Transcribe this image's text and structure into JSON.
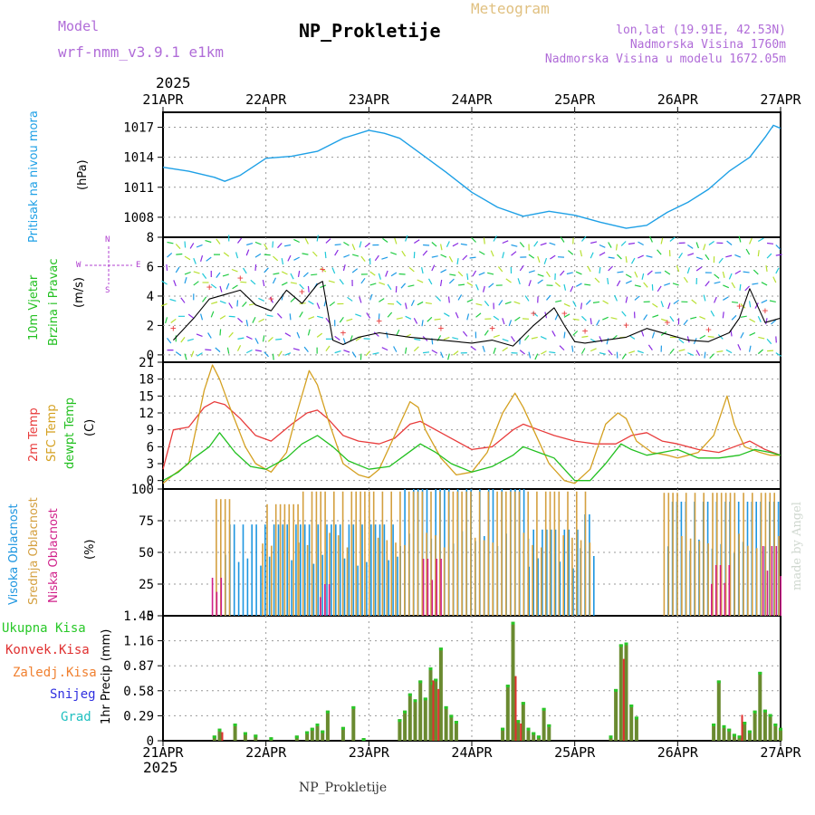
{
  "header": {
    "model_label": "Model",
    "model_name": "wrf-nmm_v3.9.1 e1km",
    "meteogram_label": "Meteogram",
    "station": "NP_Prokletije",
    "coords": "lon,lat (19.91E, 42.53N)",
    "elevation": "Nadmorska Visina 1760m",
    "model_elevation": "Nadmorska Visina u modelu 1672.05m",
    "year": "2025",
    "footer_station": "NP_Prokletije",
    "signature": "made by Angel"
  },
  "colors": {
    "pressure": "#1ea0e6",
    "temp2m": "#e83c3c",
    "sfc_temp": "#d4a020",
    "dewpt": "#22c020",
    "high_cloud": "#1e96e0",
    "mid_cloud": "#d4a040",
    "low_cloud": "#d0208a",
    "total_precip": "#28c828",
    "conv_precip": "#e03030",
    "freezing_precip": "#f08030",
    "snow": "#3030e0",
    "hail": "#20c0c0",
    "grid": "#999999"
  },
  "chart_data": [
    {
      "type": "line",
      "panel": "pressure",
      "labels": [
        "Pritisak na nivou mora",
        "(hPa)"
      ],
      "y_ticks": [
        "1008",
        "1011",
        "1014",
        "1017"
      ],
      "ylim": [
        1006,
        1018.5
      ],
      "x_ticks": [
        "21APR",
        "22APR",
        "23APR",
        "24APR",
        "25APR",
        "26APR",
        "27APR"
      ],
      "x_days": [
        0,
        1,
        2,
        3,
        4,
        5,
        6
      ],
      "series": [
        {
          "key": "pressure",
          "x": [
            0,
            0.25,
            0.5,
            0.6,
            0.75,
            1.0,
            1.25,
            1.5,
            1.75,
            2.0,
            2.15,
            2.3,
            2.5,
            2.75,
            3.0,
            3.25,
            3.5,
            3.75,
            4.0,
            4.25,
            4.5,
            4.7,
            4.9,
            5.1,
            5.3,
            5.5,
            5.7,
            5.85,
            5.93,
            6.0
          ],
          "y": [
            1013.0,
            1012.6,
            1012.0,
            1011.6,
            1012.2,
            1013.9,
            1014.1,
            1014.6,
            1015.9,
            1016.7,
            1016.4,
            1015.9,
            1014.4,
            1012.5,
            1010.5,
            1009.0,
            1008.1,
            1008.6,
            1008.2,
            1007.5,
            1006.9,
            1007.2,
            1008.5,
            1009.5,
            1010.8,
            1012.6,
            1014.0,
            1016.0,
            1017.2,
            1016.9
          ]
        }
      ]
    },
    {
      "type": "line",
      "panel": "wind",
      "labels": [
        "10m Vjetar",
        "Brzina i Pravac",
        "(m/s)"
      ],
      "compass": {
        "n": "N",
        "s": "S",
        "e": "E",
        "w": "W"
      },
      "y_ticks": [
        "0",
        "2",
        "4",
        "6",
        "8"
      ],
      "ylim": [
        -0.5,
        8
      ],
      "series": [
        {
          "key": "wind_speed",
          "x": [
            0.1,
            0.3,
            0.45,
            0.6,
            0.75,
            0.9,
            1.05,
            1.2,
            1.35,
            1.5,
            1.55,
            1.65,
            1.75,
            1.9,
            2.1,
            2.4,
            2.7,
            3.0,
            3.2,
            3.4,
            3.6,
            3.8,
            3.9,
            4.0,
            4.1,
            4.3,
            4.5,
            4.7,
            4.9,
            5.1,
            5.3,
            5.5,
            5.6,
            5.7,
            5.85,
            6.0
          ],
          "y": [
            1.0,
            2.5,
            3.8,
            4.1,
            4.4,
            3.4,
            3.0,
            4.4,
            3.5,
            4.8,
            5.0,
            1.0,
            0.7,
            1.2,
            1.5,
            1.2,
            1.0,
            0.8,
            1.0,
            0.6,
            2.0,
            3.2,
            2.0,
            0.9,
            0.8,
            1.0,
            1.2,
            1.8,
            1.4,
            1.0,
            0.9,
            1.5,
            2.5,
            4.5,
            2.2,
            2.5
          ]
        }
      ]
    },
    {
      "type": "line",
      "panel": "temperature",
      "labels": [
        "2m Temp",
        "SFC Temp",
        "dewpt Temp",
        "(C)"
      ],
      "y_ticks": [
        "0",
        "3",
        "6",
        "9",
        "12",
        "15",
        "18",
        "21"
      ],
      "ylim": [
        -1.5,
        21
      ],
      "series": [
        {
          "key": "temp2m",
          "x": [
            0,
            0.1,
            0.25,
            0.4,
            0.5,
            0.6,
            0.75,
            0.9,
            1.05,
            1.25,
            1.4,
            1.5,
            1.6,
            1.75,
            1.9,
            2.1,
            2.25,
            2.4,
            2.5,
            2.6,
            2.75,
            2.9,
            3.0,
            3.2,
            3.4,
            3.5,
            3.65,
            3.8,
            4.0,
            4.2,
            4.4,
            4.55,
            4.7,
            4.85,
            5.0,
            5.2,
            5.4,
            5.55,
            5.7,
            5.85,
            6.0
          ],
          "y": [
            2.0,
            9.0,
            9.5,
            13.0,
            14.0,
            13.5,
            11.0,
            8.0,
            7.0,
            10.0,
            12.0,
            12.5,
            11.0,
            8.0,
            7.0,
            6.5,
            7.5,
            10.0,
            10.5,
            9.5,
            8.0,
            6.5,
            5.5,
            6.0,
            9.0,
            10.0,
            9.0,
            8.0,
            7.0,
            6.5,
            6.5,
            8.0,
            8.5,
            7.0,
            6.5,
            5.5,
            5.0,
            6.0,
            7.0,
            5.5,
            4.5
          ]
        },
        {
          "key": "sfc_temp",
          "x": [
            0,
            0.1,
            0.25,
            0.4,
            0.48,
            0.55,
            0.65,
            0.8,
            0.9,
            1.05,
            1.2,
            1.3,
            1.42,
            1.5,
            1.6,
            1.75,
            1.9,
            2.0,
            2.1,
            2.25,
            2.4,
            2.48,
            2.55,
            2.7,
            2.85,
            3.0,
            3.15,
            3.3,
            3.42,
            3.5,
            3.6,
            3.75,
            3.9,
            4.0,
            4.15,
            4.3,
            4.42,
            4.5,
            4.6,
            4.75,
            4.9,
            5.0,
            5.2,
            5.35,
            5.48,
            5.55,
            5.65,
            5.8,
            5.9,
            6.0
          ],
          "y": [
            -0.5,
            1.0,
            3.0,
            16.0,
            20.5,
            18.0,
            13.0,
            6.0,
            3.0,
            1.5,
            5.0,
            12.0,
            19.5,
            17.0,
            11.0,
            3.0,
            1.0,
            0.5,
            2.0,
            8.0,
            14.0,
            13.0,
            9.0,
            4.0,
            1.0,
            1.5,
            5.0,
            12.0,
            15.5,
            13.0,
            9.0,
            3.0,
            0.0,
            -0.5,
            2.0,
            10.0,
            12.0,
            11.0,
            7.0,
            5.0,
            4.5,
            4.0,
            5.0,
            8.0,
            15.0,
            10.0,
            6.0,
            5.0,
            4.5,
            4.5
          ]
        },
        {
          "key": "dewpt",
          "x": [
            0,
            0.15,
            0.3,
            0.45,
            0.55,
            0.7,
            0.85,
            1.0,
            1.2,
            1.35,
            1.5,
            1.65,
            1.8,
            2.0,
            2.2,
            2.35,
            2.5,
            2.65,
            2.8,
            3.0,
            3.2,
            3.4,
            3.5,
            3.65,
            3.8,
            4.0,
            4.15,
            4.3,
            4.45,
            4.55,
            4.7,
            4.85,
            5.0,
            5.2,
            5.4,
            5.6,
            5.75,
            5.9,
            6.0
          ],
          "y": [
            0.0,
            1.5,
            4.0,
            6.0,
            8.5,
            5.0,
            2.5,
            2.0,
            4.0,
            6.5,
            8.0,
            6.0,
            3.5,
            2.0,
            2.5,
            4.5,
            6.5,
            5.0,
            3.0,
            1.5,
            2.5,
            4.5,
            6.0,
            5.0,
            4.0,
            0.0,
            0.0,
            3.0,
            6.5,
            5.5,
            4.5,
            5.0,
            5.5,
            4.0,
            4.0,
            4.5,
            5.5,
            5.0,
            4.5
          ]
        }
      ]
    },
    {
      "type": "bar",
      "panel": "clouds",
      "labels": [
        "Visoka Oblacnost",
        "Srednja Oblacnost",
        "Niska Oblacnost",
        "(%)"
      ],
      "y_ticks": [
        "0",
        "25",
        "50",
        "75",
        "100"
      ],
      "ylim": [
        0,
        100
      ],
      "series": [
        {
          "key": "high_cloud",
          "ranges": [
            [
              0.6,
              2.3,
              72
            ],
            [
              2.3,
              3.55,
              100
            ],
            [
              3.55,
              4.05,
              68
            ],
            [
              4.05,
              4.2,
              80
            ],
            [
              4.9,
              6.0,
              90
            ]
          ]
        },
        {
          "key": "mid_cloud",
          "ranges": [
            [
              0.5,
              0.65,
              92
            ],
            [
              0.95,
              1.3,
              88
            ],
            [
              1.3,
              4.15,
              98
            ],
            [
              4.85,
              6.0,
              97
            ]
          ]
        },
        {
          "key": "low_cloud",
          "ranges": [
            [
              0.45,
              0.55,
              30
            ],
            [
              1.5,
              1.6,
              25
            ],
            [
              2.5,
              2.7,
              45
            ],
            [
              5.3,
              5.5,
              40
            ],
            [
              5.8,
              6.0,
              55
            ]
          ]
        }
      ]
    },
    {
      "type": "bar",
      "panel": "precipitation",
      "labels": [
        "Ukupna Kisa",
        "Konvek.Kisa",
        "Zaledj.Kisa",
        "Snijeg",
        "Grad",
        "1hr Precip (mm)"
      ],
      "y_ticks": [
        "0",
        "0.29",
        "0.58",
        "0.87",
        "1.16",
        "1.45"
      ],
      "ylim": [
        0,
        1.45
      ],
      "series": [
        {
          "key": "total_precip",
          "x": [
            0.5,
            0.55,
            0.7,
            0.8,
            0.9,
            1.05,
            1.3,
            1.4,
            1.45,
            1.5,
            1.55,
            1.6,
            1.75,
            1.85,
            1.95,
            2.3,
            2.35,
            2.4,
            2.45,
            2.5,
            2.55,
            2.6,
            2.62,
            2.65,
            2.7,
            2.75,
            2.8,
            2.85,
            3.3,
            3.35,
            3.4,
            3.45,
            3.5,
            3.55,
            3.6,
            3.65,
            3.7,
            3.75,
            4.35,
            4.4,
            4.45,
            4.5,
            4.55,
            4.6,
            5.35,
            5.4,
            5.45,
            5.5,
            5.55,
            5.6,
            5.65,
            5.7,
            5.75,
            5.8,
            5.85,
            5.9,
            5.95,
            6.0
          ],
          "y": [
            0.06,
            0.14,
            0.2,
            0.1,
            0.07,
            0.04,
            0.06,
            0.11,
            0.15,
            0.2,
            0.12,
            0.35,
            0.16,
            0.4,
            0.03,
            0.25,
            0.35,
            0.55,
            0.48,
            0.7,
            0.5,
            0.85,
            0.68,
            0.72,
            1.08,
            0.4,
            0.3,
            0.23,
            0.15,
            0.65,
            1.38,
            0.24,
            0.45,
            0.15,
            0.1,
            0.06,
            0.38,
            0.19,
            0.06,
            0.6,
            1.12,
            1.14,
            0.42,
            0.28,
            0.2,
            0.7,
            0.18,
            0.14,
            0.08,
            0.06,
            0.22,
            0.12,
            0.35,
            0.8,
            0.36,
            0.31,
            0.2,
            0.15
          ]
        },
        {
          "key": "conv_precip",
          "x": [
            0.55,
            2.6,
            2.65,
            3.4,
            3.45,
            4.45,
            5.6
          ],
          "y": [
            0.1,
            0.7,
            0.6,
            0.75,
            0.2,
            0.95,
            0.3
          ]
        }
      ]
    }
  ]
}
